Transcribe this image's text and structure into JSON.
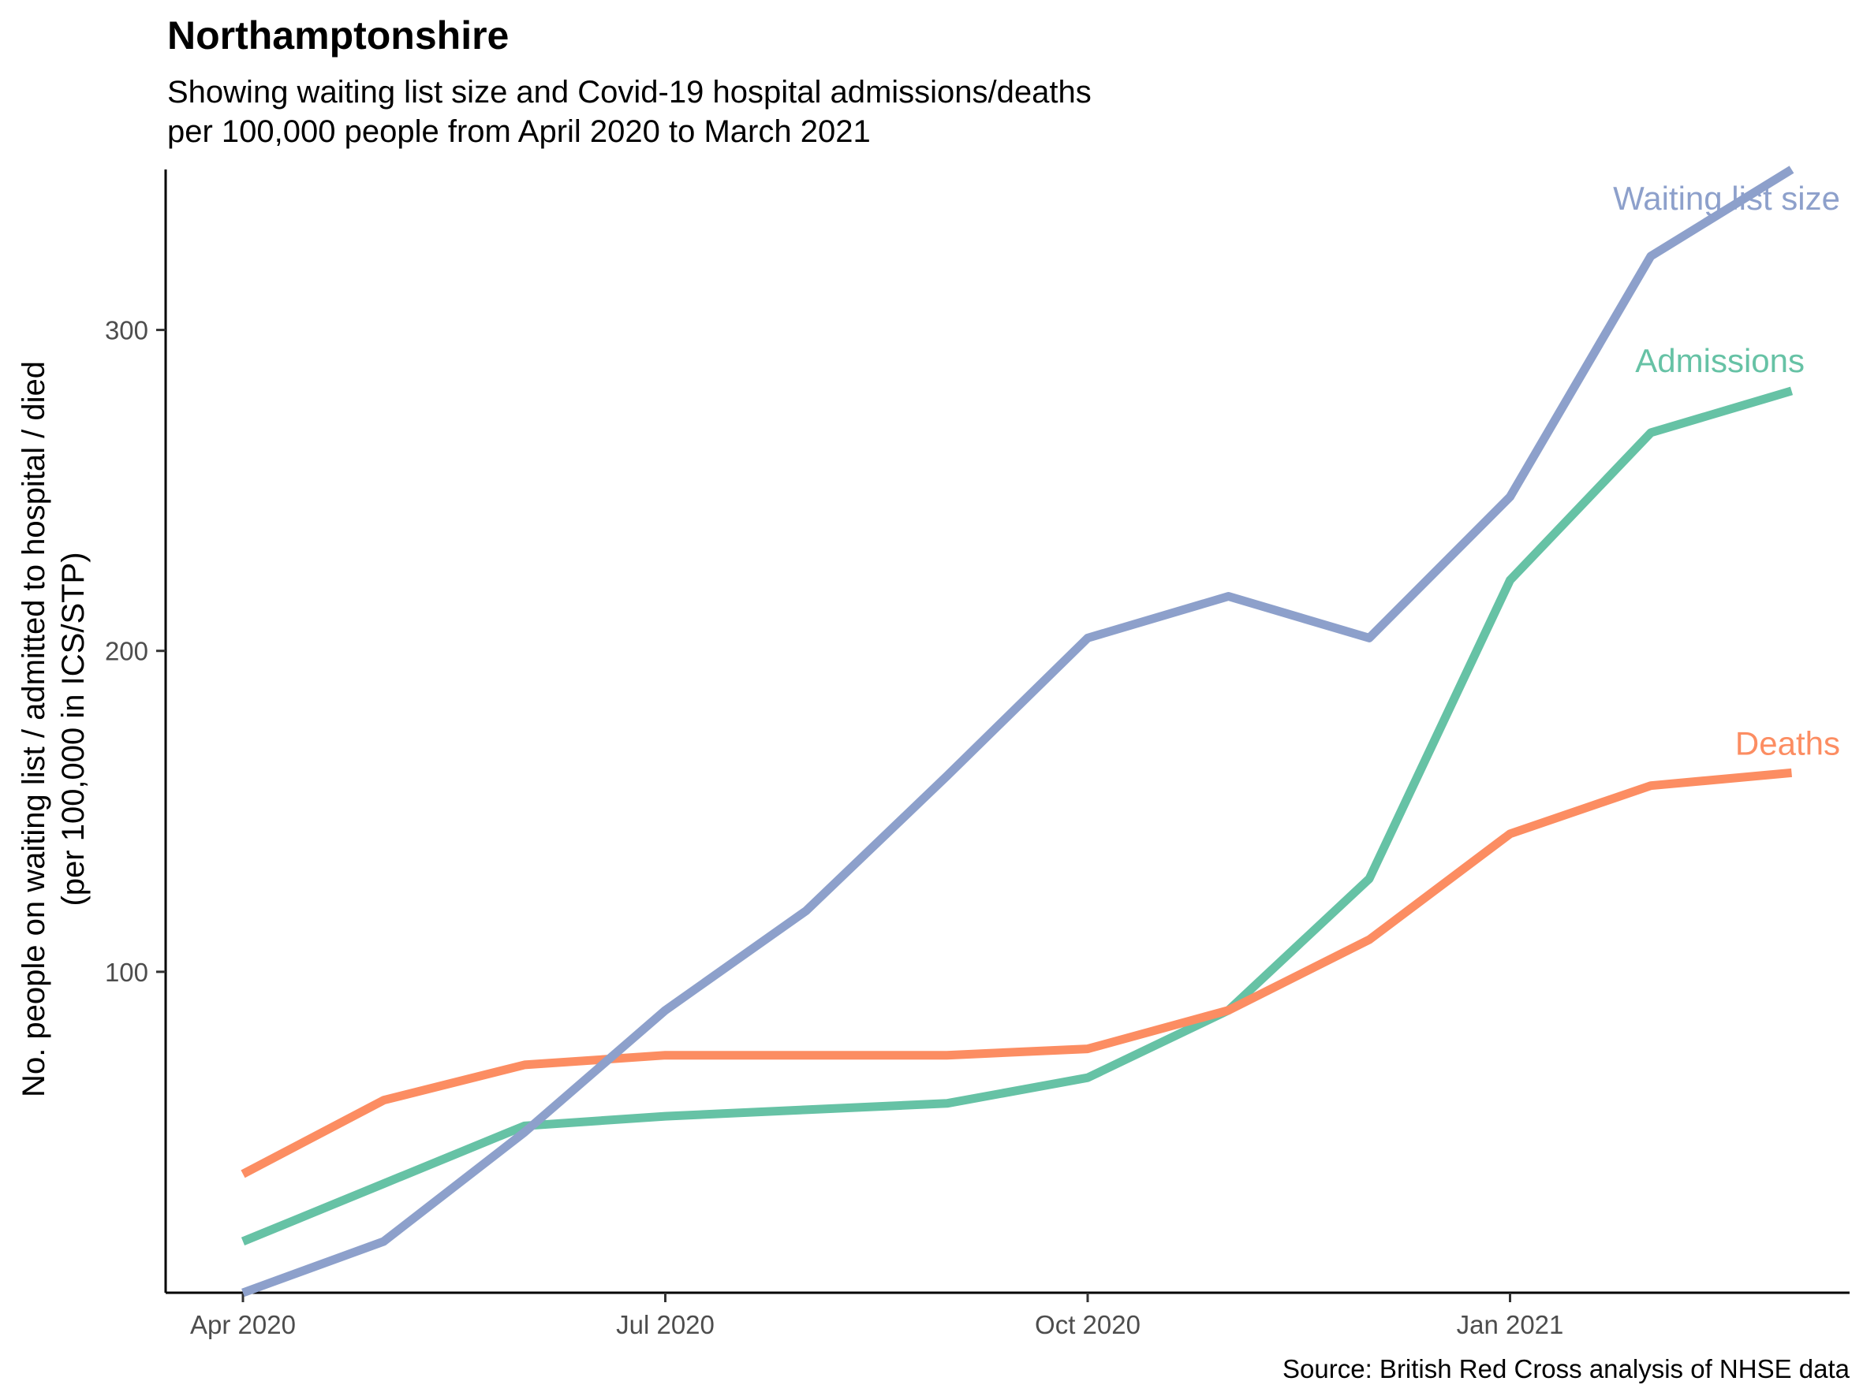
{
  "chart_data": {
    "type": "line",
    "title": "Northamptonshire",
    "subtitle_lines": [
      "Showing waiting list size and Covid-19 hospital admissions/deaths",
      "per 100,000 people from April 2020 to March 2021"
    ],
    "ylabel_lines": [
      "No. people on waiting list / admitted to hospital / died",
      "(per 100,000 in ICS/STP)"
    ],
    "xlabel": "",
    "caption": "Source: British Red Cross analysis of NHSE data",
    "x": [
      "2020-04",
      "2020-05",
      "2020-06",
      "2020-07",
      "2020-08",
      "2020-09",
      "2020-10",
      "2020-11",
      "2020-12",
      "2021-01",
      "2021-02",
      "2021-03"
    ],
    "x_ticks": [
      {
        "label": "Apr 2020",
        "index": 0
      },
      {
        "label": "Jul 2020",
        "index": 3
      },
      {
        "label": "Oct 2020",
        "index": 6
      },
      {
        "label": "Jan 2021",
        "index": 9
      }
    ],
    "y_ticks": [
      100,
      200,
      300
    ],
    "ylim": [
      0,
      350
    ],
    "grid": false,
    "legend": "none",
    "series": [
      {
        "name": "Waiting list size",
        "color": "#8DA0CB",
        "values": [
          0,
          16,
          50,
          88,
          119,
          161,
          204,
          217,
          204,
          248,
          323,
          350
        ]
      },
      {
        "name": "Admissions",
        "color": "#66C2A5",
        "values": [
          16,
          34,
          52,
          55,
          57,
          59,
          67,
          88,
          129,
          222,
          268,
          281
        ]
      },
      {
        "name": "Deaths",
        "color": "#FC8D62",
        "values": [
          37,
          60,
          71,
          74,
          74,
          74,
          76,
          88,
          110,
          143,
          158,
          162
        ]
      }
    ]
  }
}
